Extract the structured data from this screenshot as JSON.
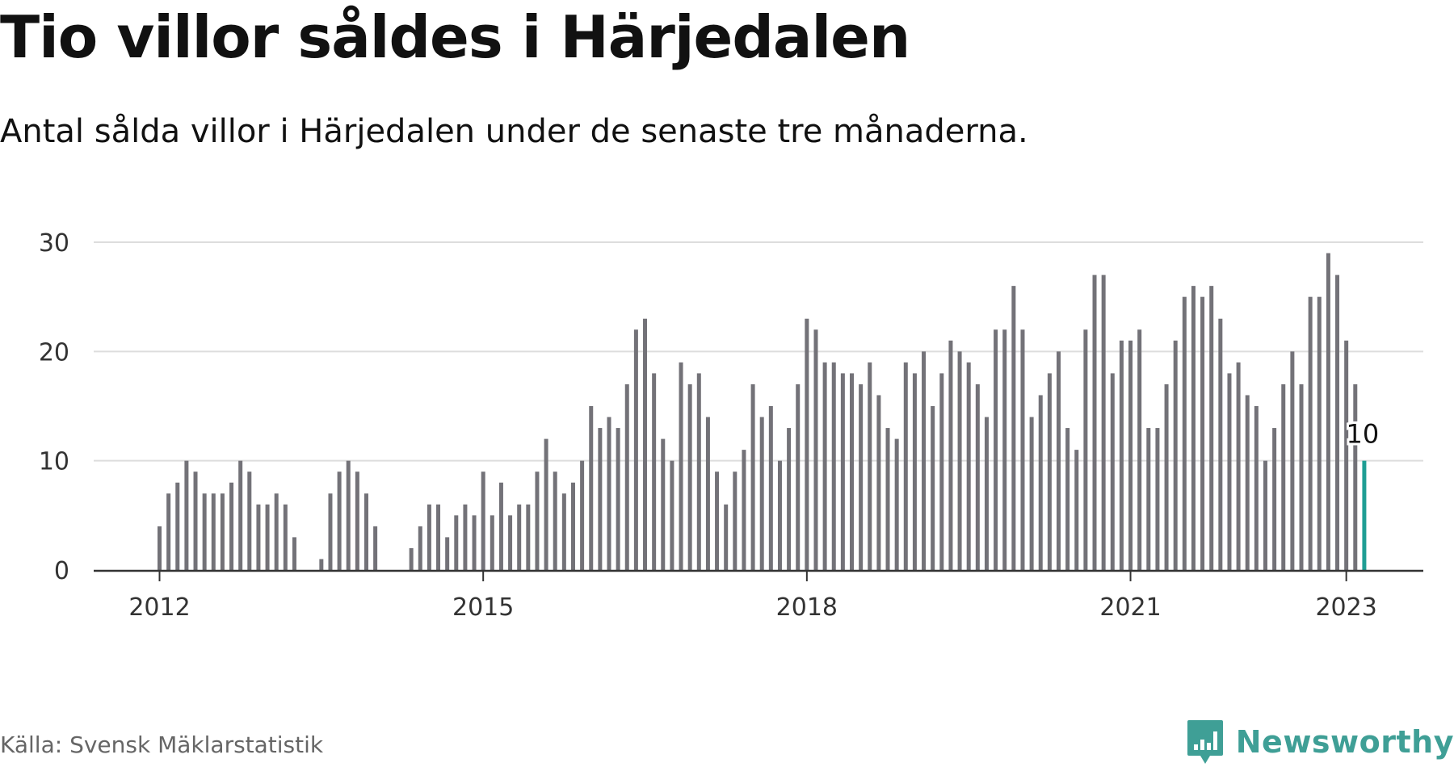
{
  "title": "Tio villor såldes i Härjedalen",
  "subtitle": "Antal sålda villor i Härjedalen under de senaste tre månaderna.",
  "source": "Källa: Svensk Mäklarstatistik",
  "brand": "Newsworthy",
  "colors": {
    "bar": "#737278",
    "highlight": "#1e9e94",
    "grid": "#dddddd",
    "axis": "#333333",
    "brand": "#3f9f96"
  },
  "icons": {
    "logo": "newsworthy-bar-chart-icon"
  },
  "chart_data": {
    "type": "bar",
    "title": "Tio villor såldes i Härjedalen",
    "subtitle": "Antal sålda villor i Härjedalen under de senaste tre månaderna.",
    "start": "2012-01",
    "x_ticks": [
      "2012",
      "2015",
      "2018",
      "2021",
      "2023"
    ],
    "y_ticks": [
      "0",
      "10",
      "20",
      "30"
    ],
    "ylim": [
      0,
      30
    ],
    "grid": true,
    "values": [
      4,
      7,
      8,
      10,
      9,
      7,
      7,
      7,
      8,
      10,
      9,
      6,
      6,
      7,
      6,
      3,
      null,
      0,
      1,
      7,
      9,
      10,
      9,
      7,
      4,
      null,
      null,
      null,
      2,
      4,
      6,
      6,
      3,
      5,
      6,
      5,
      9,
      5,
      8,
      5,
      6,
      6,
      9,
      12,
      9,
      7,
      8,
      10,
      15,
      13,
      14,
      13,
      17,
      22,
      23,
      18,
      12,
      10,
      19,
      17,
      18,
      14,
      9,
      6,
      9,
      11,
      17,
      14,
      15,
      10,
      13,
      17,
      23,
      22,
      19,
      19,
      18,
      18,
      17,
      19,
      16,
      13,
      12,
      19,
      18,
      20,
      15,
      18,
      21,
      20,
      19,
      17,
      14,
      22,
      22,
      26,
      22,
      14,
      16,
      18,
      20,
      13,
      11,
      22,
      27,
      27,
      18,
      21,
      21,
      22,
      13,
      13,
      17,
      21,
      25,
      26,
      25,
      26,
      23,
      18,
      19,
      16,
      15,
      10,
      13,
      17,
      20,
      17,
      25,
      25,
      29,
      27,
      21,
      17,
      10
    ],
    "highlight": {
      "label": "10",
      "value": 10
    }
  }
}
